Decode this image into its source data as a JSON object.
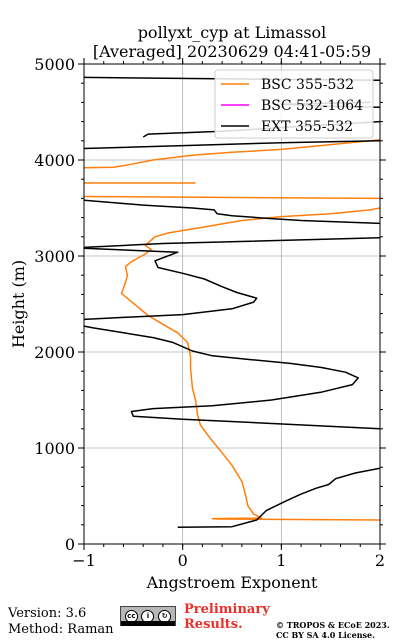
{
  "chart_data": {
    "type": "line",
    "title_line1": "pollyxt_cyp at Limassol",
    "title_line2": "[Averaged] 20230629 04:41-05:59",
    "xlabel": "Angstroem Exponent",
    "ylabel": "Height (m)",
    "xlim": [
      -1,
      2
    ],
    "ylim": [
      0,
      5000
    ],
    "xticks": [
      -1,
      0,
      1,
      2
    ],
    "xtick_labels": [
      "−1",
      "0",
      "1",
      "2"
    ],
    "yticks": [
      0,
      1000,
      2000,
      3000,
      4000,
      5000
    ],
    "ytick_labels": [
      "0",
      "1000",
      "2000",
      "3000",
      "4000",
      "5000"
    ],
    "grid": true,
    "legend_position": "top-right",
    "series": [
      {
        "name": "BSC 355-532",
        "color": "#ff7f0e",
        "points": [
          [
            2.0,
            250
          ],
          [
            0.35,
            260
          ],
          [
            0.3,
            265
          ],
          [
            0.8,
            270
          ],
          [
            0.72,
            310
          ],
          [
            0.66,
            400
          ],
          [
            0.64,
            500
          ],
          [
            0.6,
            650
          ],
          [
            0.5,
            820
          ],
          [
            0.4,
            950
          ],
          [
            0.28,
            1100
          ],
          [
            0.18,
            1240
          ],
          [
            0.15,
            1350
          ],
          [
            0.13,
            1500
          ],
          [
            0.1,
            1620
          ],
          [
            0.08,
            1820
          ],
          [
            0.08,
            1950
          ],
          [
            0.05,
            2100
          ],
          [
            -0.05,
            2200
          ],
          [
            -0.22,
            2300
          ],
          [
            -0.35,
            2380
          ],
          [
            -0.55,
            2550
          ],
          [
            -0.62,
            2610
          ],
          [
            -0.58,
            2720
          ],
          [
            -0.56,
            2800
          ],
          [
            -0.58,
            2890
          ],
          [
            -0.52,
            2940
          ],
          [
            -0.45,
            2980
          ],
          [
            -0.38,
            3020
          ],
          [
            -0.32,
            3070
          ],
          [
            -0.38,
            3110
          ],
          [
            -0.28,
            3200
          ],
          [
            -0.15,
            3240
          ],
          [
            0.2,
            3300
          ],
          [
            0.6,
            3370
          ],
          [
            1.0,
            3410
          ],
          [
            1.5,
            3440
          ],
          [
            1.9,
            3480
          ],
          [
            2.0,
            3500
          ]
        ],
        "fragments": [
          [
            [
              -1.0,
              3620
            ],
            [
              2.0,
              3600
            ]
          ],
          [
            [
              -1.0,
              3760
            ],
            [
              0.13,
              3760
            ]
          ],
          [
            [
              -1.0,
              3920
            ],
            [
              -0.7,
              3925
            ],
            [
              -0.55,
              3950
            ],
            [
              -0.3,
              4000
            ],
            [
              0.1,
              4050
            ],
            [
              0.5,
              4080
            ],
            [
              1.0,
              4110
            ],
            [
              1.5,
              4160
            ],
            [
              2.0,
              4210
            ]
          ]
        ]
      },
      {
        "name": "BSC 532-1064",
        "color": "#ff00ff",
        "points": []
      },
      {
        "name": "EXT 355-532",
        "color": "#000000",
        "points": [
          [
            -0.05,
            175
          ],
          [
            0.5,
            180
          ],
          [
            0.75,
            250
          ],
          [
            0.85,
            350
          ],
          [
            1.05,
            450
          ],
          [
            1.2,
            520
          ],
          [
            1.35,
            580
          ],
          [
            1.48,
            620
          ],
          [
            1.55,
            680
          ],
          [
            1.75,
            740
          ],
          [
            2.0,
            790
          ]
        ],
        "fragments": [
          [
            [
              2.0,
              1200
            ],
            [
              0.8,
              1260
            ],
            [
              0.0,
              1300
            ],
            [
              -0.5,
              1330
            ],
            [
              -0.52,
              1380
            ],
            [
              -0.3,
              1410
            ],
            [
              0.3,
              1440
            ],
            [
              0.9,
              1500
            ],
            [
              1.4,
              1580
            ],
            [
              1.72,
              1660
            ],
            [
              1.78,
              1730
            ],
            [
              1.65,
              1790
            ],
            [
              1.4,
              1840
            ],
            [
              1.1,
              1880
            ],
            [
              0.7,
              1920
            ],
            [
              0.3,
              1960
            ],
            [
              0.1,
              2010
            ],
            [
              -0.1,
              2100
            ],
            [
              -0.3,
              2150
            ],
            [
              -0.6,
              2200
            ],
            [
              -0.9,
              2250
            ],
            [
              -1.0,
              2270
            ]
          ],
          [
            [
              -1.0,
              2340
            ],
            [
              -0.6,
              2360
            ],
            [
              0.0,
              2390
            ],
            [
              0.5,
              2450
            ],
            [
              0.72,
              2520
            ],
            [
              0.75,
              2560
            ],
            [
              0.55,
              2620
            ],
            [
              0.4,
              2680
            ],
            [
              0.22,
              2760
            ],
            [
              0.0,
              2820
            ],
            [
              -0.25,
              2880
            ],
            [
              -0.28,
              2950
            ],
            [
              -0.05,
              3040
            ],
            [
              -1.0,
              3080
            ]
          ],
          [
            [
              -1.0,
              3090
            ],
            [
              -0.2,
              3130
            ],
            [
              2.0,
              3190
            ]
          ],
          [
            [
              2.0,
              3340
            ],
            [
              1.2,
              3370
            ],
            [
              0.9,
              3390
            ],
            [
              0.5,
              3420
            ],
            [
              0.35,
              3440
            ],
            [
              0.32,
              3480
            ],
            [
              0.1,
              3500
            ],
            [
              -0.4,
              3530
            ],
            [
              -1.0,
              3580
            ]
          ],
          [
            [
              -1.0,
              4120
            ],
            [
              0.0,
              4150
            ],
            [
              1.0,
              4180
            ],
            [
              2.0,
              4200
            ]
          ],
          [
            [
              -0.4,
              4240
            ],
            [
              -0.35,
              4270
            ],
            [
              0.4,
              4300
            ],
            [
              1.2,
              4350
            ],
            [
              2.0,
              4400
            ]
          ],
          [
            [
              2.0,
              4550
            ],
            [
              1.5,
              4560
            ],
            [
              1.0,
              4580
            ],
            [
              1.9,
              4600
            ]
          ],
          [
            [
              -1.0,
              4860
            ],
            [
              2.0,
              4830
            ]
          ]
        ]
      }
    ]
  },
  "footer": {
    "version": "Version: 3.6",
    "method": "Method: Raman",
    "preliminary_line1": "Preliminary",
    "preliminary_line2": "Results.",
    "copyright_line1": "© TROPOS & ECoE 2023.",
    "copyright_line2": "CC BY SA 4.0 License."
  }
}
